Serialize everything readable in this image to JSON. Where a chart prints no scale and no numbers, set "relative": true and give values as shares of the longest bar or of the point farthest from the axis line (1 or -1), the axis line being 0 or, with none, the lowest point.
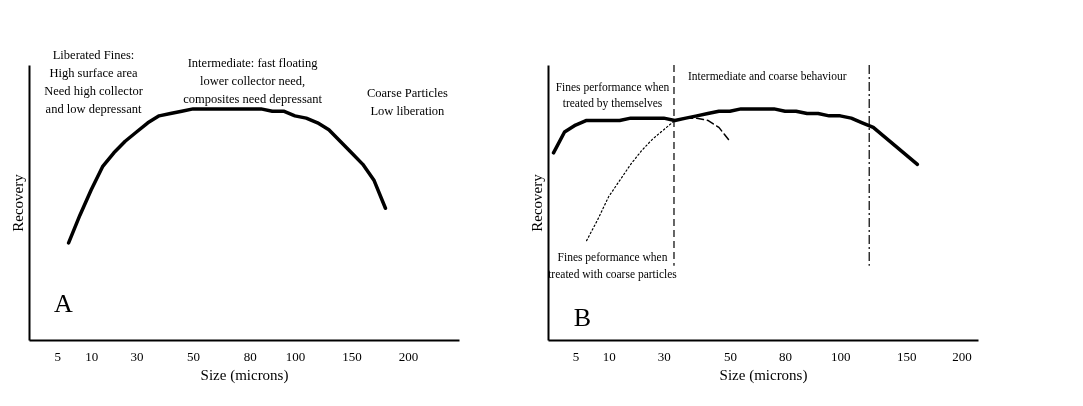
{
  "chart_data": [
    {
      "type": "line",
      "relative": true,
      "xlabel": "Size (microns)",
      "ylabel": "Recovery",
      "grid": false,
      "marker": "none",
      "categories": [
        null,
        null,
        "5",
        null,
        null,
        "10",
        null,
        null,
        null,
        "30",
        null,
        null,
        null,
        null,
        "50",
        null,
        null,
        null,
        null,
        "80",
        null,
        null,
        null,
        "100",
        null,
        null,
        null,
        null,
        "150",
        null,
        null,
        null,
        null,
        "200",
        null,
        null,
        null,
        null
      ],
      "series": [
        {
          "color": "#000000",
          "line_style": "solid",
          "values": [
            null,
            null,
            null,
            0.42,
            0.54,
            0.65,
            0.75,
            0.81,
            0.86,
            0.9,
            0.94,
            0.97,
            0.98,
            0.99,
            1.0,
            1.0,
            1.0,
            1.0,
            1.0,
            1.0,
            1.0,
            0.99,
            0.99,
            0.97,
            0.96,
            0.94,
            0.91,
            0.86,
            0.81,
            0.76,
            0.69,
            0.57,
            null,
            null,
            null,
            null,
            null,
            null
          ]
        }
      ],
      "annotations": [
        "Liberated Fines:\nHigh surface area\nNeed high collector\nand low depressant",
        "Intermediate: fast floating\nlower collector need,\ncomposites need depressant",
        "Coarse Particles\nLow liberation",
        "A"
      ]
    },
    {
      "type": "line",
      "relative": true,
      "xlabel": "Size (microns)",
      "ylabel": "Recovery",
      "grid": false,
      "marker": "none",
      "categories": [
        null,
        null,
        "5",
        null,
        null,
        "10",
        null,
        null,
        null,
        null,
        "30",
        null,
        null,
        null,
        null,
        null,
        "50",
        null,
        null,
        null,
        null,
        "80",
        null,
        null,
        null,
        null,
        "100",
        null,
        null,
        null,
        null,
        null,
        "150",
        null,
        null,
        null,
        null,
        "200",
        null
      ],
      "series": [
        {
          "color": "#000000",
          "line_style": "solid",
          "values": [
            0.81,
            0.9,
            0.93,
            0.95,
            0.95,
            0.95,
            0.95,
            0.96,
            0.96,
            0.96,
            0.96,
            0.95,
            0.96,
            0.97,
            0.98,
            0.99,
            0.99,
            1.0,
            1.0,
            1.0,
            1.0,
            0.99,
            0.99,
            0.98,
            0.98,
            0.97,
            0.97,
            0.96,
            0.94,
            0.92,
            0.88,
            0.84,
            0.8,
            0.76,
            null,
            null,
            null,
            null,
            null
          ]
        },
        {
          "color": "#000000",
          "line_style": "dashed",
          "values": [
            null,
            null,
            null,
            null,
            null,
            null,
            null,
            null,
            null,
            null,
            null,
            0.95,
            0.96,
            0.96,
            0.95,
            0.92,
            0.86,
            null,
            null,
            null,
            null,
            null,
            null,
            null,
            null,
            null,
            null,
            null,
            null,
            null,
            null,
            null,
            null,
            null,
            null,
            null,
            null,
            null,
            null
          ]
        },
        {
          "color": "#000000",
          "line_style": "dotted",
          "values": [
            null,
            null,
            null,
            0.43,
            0.52,
            0.62,
            0.69,
            0.76,
            0.82,
            0.87,
            0.91,
            0.95,
            null,
            null,
            null,
            null,
            null,
            null,
            null,
            null,
            null,
            null,
            null,
            null,
            null,
            null,
            null,
            null,
            null,
            null,
            null,
            null,
            null,
            null,
            null,
            null,
            null,
            null,
            null
          ]
        }
      ],
      "annotations": [
        "Fines performance when\ntreated by themselves",
        "Intermediate and coarse behaviour",
        "Fines peformance when\ntreated with coarse particles",
        "B"
      ]
    }
  ]
}
